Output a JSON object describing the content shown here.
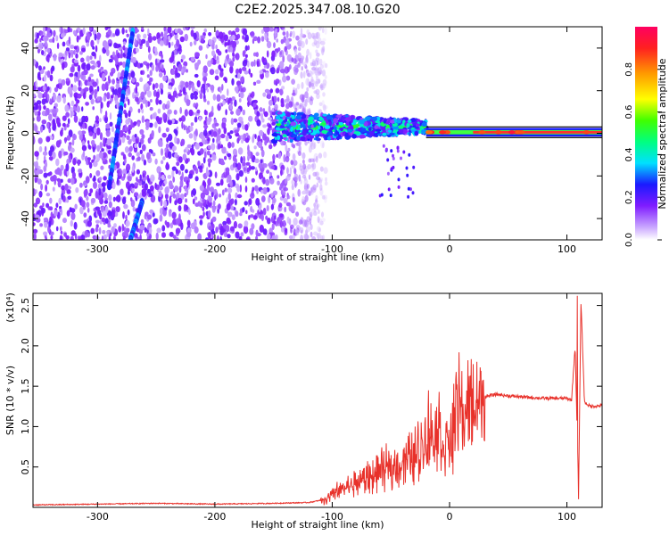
{
  "title": "C2E2.2025.347.08.10.G20",
  "chart_data": [
    {
      "type": "heatmap",
      "name": "spectrogram",
      "xlabel": "Height of straight line (km)",
      "ylabel": "Frequency (Hz)",
      "xlim": [
        -355,
        130
      ],
      "ylim": [
        -50,
        50
      ],
      "xticks": [
        -300,
        -200,
        -100,
        0,
        100
      ],
      "yticks": [
        40,
        20,
        0,
        -20,
        -40
      ],
      "colorbar": {
        "label": "Normalized spectral amplitude",
        "ticks": [
          0.0,
          0.2,
          0.4,
          0.6,
          0.8
        ],
        "tick_labels": [
          "0.0",
          "0.2",
          "0.4",
          "0.6",
          "0.8"
        ],
        "range": [
          0,
          1
        ]
      },
      "features": [
        {
          "name": "noise-region",
          "x_range": [
            -355,
            -105
          ],
          "description_level": "low amplitude, purple"
        },
        {
          "name": "broadband-signal",
          "x_range": [
            -150,
            -20
          ],
          "center_freq": 3,
          "peak_amplitude": 0.45
        },
        {
          "name": "carrier-line",
          "x_range": [
            -20,
            130
          ],
          "center_freq": 0.5,
          "peak_amplitude": 0.9
        },
        {
          "name": "slanted-interference",
          "points": [
            [
              -270,
              48
            ],
            [
              -290,
              -25
            ]
          ]
        },
        {
          "name": "slanted-interference-2",
          "points": [
            [
              -262,
              -32
            ],
            [
              -272,
              -50
            ]
          ]
        }
      ]
    },
    {
      "type": "line",
      "name": "snr",
      "xlabel": "Height of straight line (km)",
      "ylabel": "SNR (10 * v/v)",
      "y_multiplier_label": "(x10⁴)",
      "xlim": [
        -355,
        130
      ],
      "ylim": [
        0,
        2.65
      ],
      "xticks": [
        -300,
        -200,
        -100,
        0,
        100
      ],
      "yticks": [
        0.5,
        1.0,
        1.5,
        2.0,
        2.5
      ],
      "ytick_labels": [
        "0.5",
        "1.0",
        "1.5",
        "2.0",
        "2.5"
      ],
      "color": "#e8312a",
      "series": [
        {
          "name": "SNR (x10^4)",
          "x": [
            -355,
            -300,
            -250,
            -200,
            -150,
            -120,
            -105,
            -95,
            -80,
            -65,
            -50,
            -40,
            -30,
            -22,
            -15,
            -10,
            -5,
            0,
            5,
            8,
            12,
            20,
            30,
            40,
            50,
            60,
            70,
            80,
            90,
            100,
            104,
            107,
            110,
            112,
            115,
            120,
            130
          ],
          "y": [
            0.03,
            0.04,
            0.05,
            0.04,
            0.05,
            0.06,
            0.1,
            0.2,
            0.3,
            0.4,
            0.5,
            0.55,
            0.65,
            0.8,
            0.9,
            1.0,
            0.8,
            0.75,
            1.1,
            1.2,
            1.15,
            1.3,
            1.37,
            1.4,
            1.38,
            1.37,
            1.36,
            1.35,
            1.35,
            1.35,
            1.33,
            2.0,
            0.2,
            2.55,
            1.3,
            1.25,
            1.26
          ]
        }
      ],
      "spikes": [
        {
          "x": -18,
          "y": 1.45
        },
        {
          "x": 8,
          "y": 1.92
        },
        {
          "x": 109,
          "y": 2.62
        },
        {
          "x": 110,
          "y": 0.1
        }
      ]
    }
  ]
}
